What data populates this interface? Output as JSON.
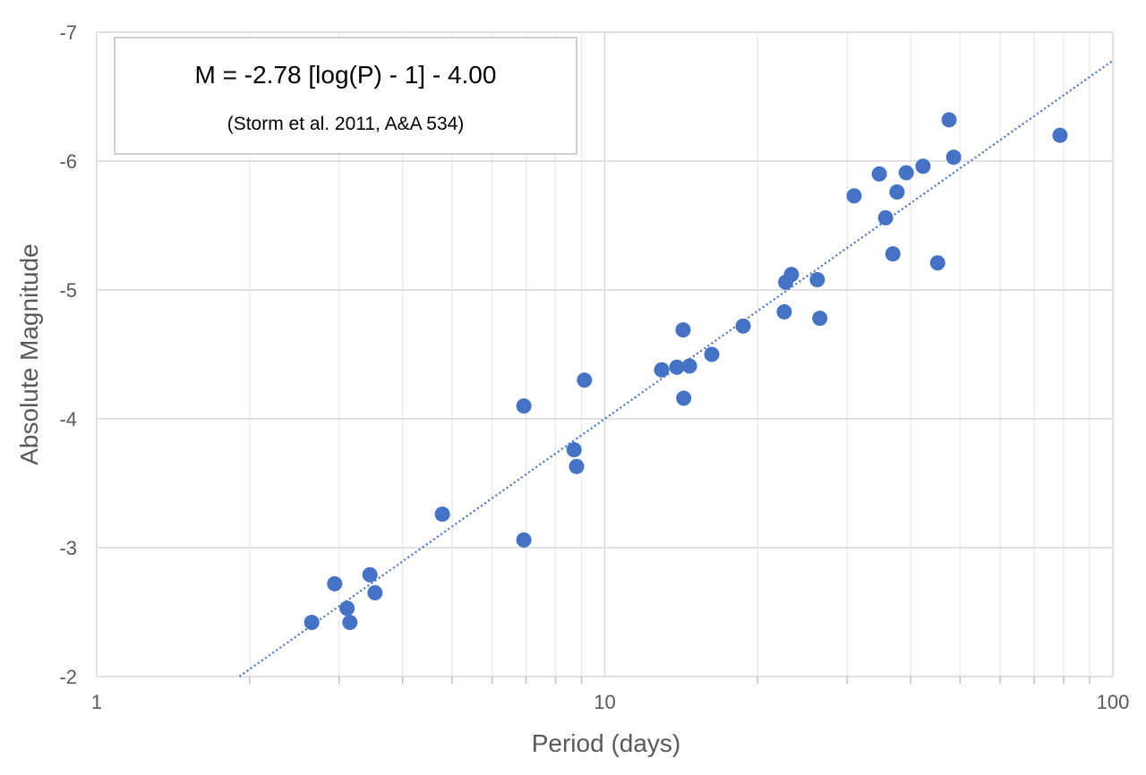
{
  "chart_data": {
    "type": "scatter",
    "title": "",
    "xlabel": "Period (days)",
    "ylabel": "Absolute Magnitude",
    "x_scale": "log",
    "xlim": [
      1,
      100
    ],
    "ylim": [
      -2,
      -7
    ],
    "y_inverted": true,
    "grid": true,
    "x_ticks": [
      "1",
      "10",
      "100"
    ],
    "y_ticks": [
      "-7",
      "-6",
      "-5",
      "-4",
      "-3",
      "-2"
    ],
    "marker_color": "#4472C4",
    "trendline_color": "#4472C4",
    "annotation": {
      "equation": "M = -2.78 [log(P) - 1] - 4.00",
      "reference": "(Storm et al. 2011, A&A 534)"
    },
    "trendline": {
      "slope": -2.78,
      "log_offset": 1,
      "intercept": -4.0,
      "x_range": [
        1.91,
        100
      ]
    },
    "points": [
      [
        2.65,
        -2.42
      ],
      [
        2.94,
        -2.72
      ],
      [
        3.11,
        -2.53
      ],
      [
        3.15,
        -2.42
      ],
      [
        3.45,
        -2.79
      ],
      [
        3.53,
        -2.65
      ],
      [
        4.79,
        -3.26
      ],
      [
        6.93,
        -3.06
      ],
      [
        6.93,
        -4.1
      ],
      [
        8.7,
        -3.76
      ],
      [
        8.8,
        -3.63
      ],
      [
        9.12,
        -4.3
      ],
      [
        12.94,
        -4.38
      ],
      [
        13.86,
        -4.4
      ],
      [
        14.68,
        -4.41
      ],
      [
        14.26,
        -4.69
      ],
      [
        14.3,
        -4.16
      ],
      [
        16.24,
        -4.5
      ],
      [
        18.72,
        -4.72
      ],
      [
        22.55,
        -4.83
      ],
      [
        22.7,
        -5.06
      ],
      [
        23.3,
        -5.12
      ],
      [
        26.2,
        -5.08
      ],
      [
        26.5,
        -4.78
      ],
      [
        30.95,
        -5.73
      ],
      [
        34.7,
        -5.9
      ],
      [
        35.7,
        -5.56
      ],
      [
        36.9,
        -5.28
      ],
      [
        37.6,
        -5.76
      ],
      [
        39.2,
        -5.91
      ],
      [
        42.3,
        -5.96
      ],
      [
        45.2,
        -5.21
      ],
      [
        47.6,
        -6.32
      ],
      [
        48.6,
        -6.03
      ],
      [
        78.7,
        -6.2
      ]
    ]
  }
}
